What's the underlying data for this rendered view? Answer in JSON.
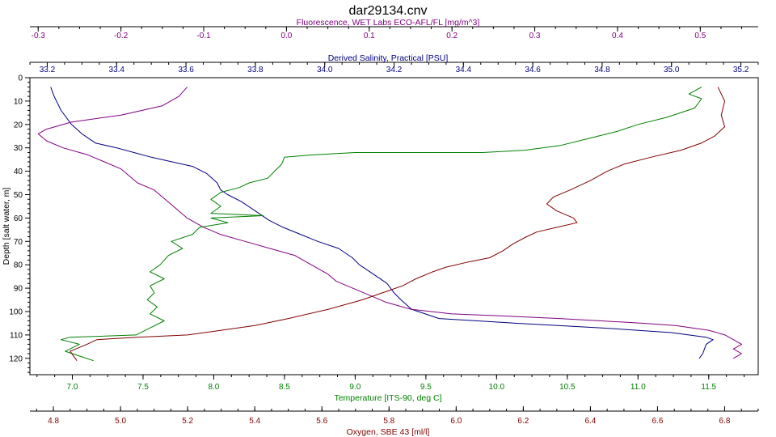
{
  "colors": {
    "background": "#ffffff",
    "axis": "#000000",
    "fluorescence": "#800080",
    "salinity": "#000080",
    "temperature": "#008000",
    "oxygen": "#800000",
    "depth": "#000000"
  },
  "chart_data": {
    "type": "line",
    "title": "dar29134.cnv",
    "grid": false,
    "legend": "none",
    "axes": {
      "fluorescence": {
        "label": "Fluorescence, WET Labs ECO-AFL/FL [mg/m^3]",
        "position": "top",
        "range": [
          -0.31,
          0.57
        ],
        "ticks": [
          -0.3,
          -0.2,
          -0.1,
          0.0,
          0.1,
          0.2,
          0.3,
          0.4,
          0.5
        ],
        "tick_labels": [
          "-0.3",
          "-0.2",
          "-0.1",
          "0.0",
          "0.1",
          "0.2",
          "0.3",
          "0.4",
          "0.5"
        ]
      },
      "salinity": {
        "label": "Derived Salinity, Practical [PSU]",
        "position": "top",
        "range": [
          33.15,
          35.25
        ],
        "ticks": [
          33.2,
          33.4,
          33.6,
          33.8,
          34.0,
          34.2,
          34.4,
          34.6,
          34.8,
          35.0,
          35.2
        ],
        "tick_labels": [
          "33.2",
          "33.4",
          "33.6",
          "33.8",
          "34.0",
          "34.2",
          "34.4",
          "34.6",
          "34.8",
          "35.0",
          "35.2"
        ]
      },
      "depth": {
        "label": "Depth [salt water, m]",
        "position": "left",
        "range": [
          0,
          127
        ],
        "inverted": true,
        "ticks": [
          0,
          10,
          20,
          30,
          40,
          50,
          60,
          70,
          80,
          90,
          100,
          110,
          120
        ],
        "tick_labels": [
          "0",
          "10",
          "20",
          "30",
          "40",
          "50",
          "60",
          "70",
          "80",
          "90",
          "100",
          "110",
          "120"
        ]
      },
      "temperature": {
        "label": "Temperature [ITS-90, deg C]",
        "position": "bottom",
        "range": [
          6.7,
          11.85
        ],
        "ticks": [
          7.0,
          7.5,
          8.0,
          8.5,
          9.0,
          9.5,
          10.0,
          10.5,
          11.0,
          11.5
        ],
        "tick_labels": [
          "7.0",
          "7.5",
          "8.0",
          "8.5",
          "9.0",
          "9.5",
          "10.0",
          "10.5",
          "11.0",
          "11.5"
        ]
      },
      "oxygen": {
        "label": "Oxygen, SBE 43 [ml/l]",
        "position": "bottom",
        "range": [
          4.73,
          6.9
        ],
        "ticks": [
          4.8,
          5.0,
          5.2,
          5.4,
          5.6,
          5.8,
          6.0,
          6.2,
          6.4,
          6.6,
          6.8
        ],
        "tick_labels": [
          "4.8",
          "5.0",
          "5.2",
          "5.4",
          "5.6",
          "5.8",
          "6.0",
          "6.2",
          "6.4",
          "6.6",
          "6.8"
        ]
      }
    },
    "series": [
      {
        "axis": "salinity",
        "points": [
          [
            33.21,
            4
          ],
          [
            33.22,
            8
          ],
          [
            33.24,
            14
          ],
          [
            33.27,
            20
          ],
          [
            33.3,
            24
          ],
          [
            33.34,
            28
          ],
          [
            33.4,
            30
          ],
          [
            33.45,
            32
          ],
          [
            33.5,
            34
          ],
          [
            33.56,
            36
          ],
          [
            33.62,
            38
          ],
          [
            33.66,
            41
          ],
          [
            33.69,
            45
          ],
          [
            33.7,
            48
          ],
          [
            33.72,
            50
          ],
          [
            33.76,
            53
          ],
          [
            33.8,
            57
          ],
          [
            33.84,
            61
          ],
          [
            33.88,
            64
          ],
          [
            33.93,
            67
          ],
          [
            33.98,
            70
          ],
          [
            34.04,
            73
          ],
          [
            34.08,
            77
          ],
          [
            34.1,
            80
          ],
          [
            34.14,
            84
          ],
          [
            34.18,
            88
          ],
          [
            34.2,
            92
          ],
          [
            34.22,
            95
          ],
          [
            34.25,
            99
          ],
          [
            34.33,
            103
          ],
          [
            34.55,
            105
          ],
          [
            34.8,
            107
          ],
          [
            35.0,
            109
          ],
          [
            35.1,
            111
          ],
          [
            35.12,
            112
          ],
          [
            35.1,
            114
          ],
          [
            35.09,
            118
          ],
          [
            35.08,
            120
          ]
        ]
      },
      {
        "axis": "fluorescence",
        "points": [
          [
            -0.12,
            4
          ],
          [
            -0.13,
            8
          ],
          [
            -0.15,
            12
          ],
          [
            -0.2,
            16
          ],
          [
            -0.26,
            19
          ],
          [
            -0.29,
            22
          ],
          [
            -0.3,
            24
          ],
          [
            -0.29,
            27
          ],
          [
            -0.27,
            30
          ],
          [
            -0.24,
            33
          ],
          [
            -0.22,
            36
          ],
          [
            -0.2,
            39
          ],
          [
            -0.19,
            42
          ],
          [
            -0.18,
            45
          ],
          [
            -0.16,
            48
          ],
          [
            -0.15,
            51
          ],
          [
            -0.14,
            54
          ],
          [
            -0.13,
            57
          ],
          [
            -0.12,
            60
          ],
          [
            -0.1,
            64
          ],
          [
            -0.08,
            67
          ],
          [
            -0.05,
            70
          ],
          [
            -0.02,
            73
          ],
          [
            0.01,
            76
          ],
          [
            0.03,
            80
          ],
          [
            0.05,
            84
          ],
          [
            0.06,
            87
          ],
          [
            0.08,
            90
          ],
          [
            0.1,
            93
          ],
          [
            0.12,
            96
          ],
          [
            0.15,
            99
          ],
          [
            0.2,
            101
          ],
          [
            0.27,
            102
          ],
          [
            0.33,
            103
          ],
          [
            0.38,
            104
          ],
          [
            0.43,
            105
          ],
          [
            0.47,
            106
          ],
          [
            0.51,
            108
          ],
          [
            0.53,
            110
          ],
          [
            0.54,
            112
          ],
          [
            0.55,
            114
          ],
          [
            0.54,
            116
          ],
          [
            0.55,
            118
          ],
          [
            0.54,
            120
          ]
        ]
      },
      {
        "axis": "temperature",
        "points": [
          [
            11.45,
            4
          ],
          [
            11.36,
            7
          ],
          [
            11.45,
            9
          ],
          [
            11.4,
            13
          ],
          [
            11.2,
            17
          ],
          [
            11.0,
            20
          ],
          [
            10.85,
            23
          ],
          [
            10.65,
            26
          ],
          [
            10.45,
            29
          ],
          [
            10.2,
            31
          ],
          [
            9.9,
            32
          ],
          [
            9.5,
            32
          ],
          [
            9.0,
            32
          ],
          [
            8.7,
            33
          ],
          [
            8.5,
            34
          ],
          [
            8.48,
            37
          ],
          [
            8.43,
            40
          ],
          [
            8.38,
            43
          ],
          [
            8.25,
            45
          ],
          [
            8.18,
            47
          ],
          [
            8.05,
            49
          ],
          [
            7.98,
            52
          ],
          [
            8.05,
            55
          ],
          [
            7.98,
            58
          ],
          [
            8.35,
            59
          ],
          [
            7.98,
            60
          ],
          [
            8.1,
            62
          ],
          [
            7.9,
            64
          ],
          [
            7.85,
            67
          ],
          [
            7.7,
            70
          ],
          [
            7.78,
            73
          ],
          [
            7.68,
            76
          ],
          [
            7.62,
            80
          ],
          [
            7.55,
            83
          ],
          [
            7.65,
            86
          ],
          [
            7.55,
            89
          ],
          [
            7.58,
            92
          ],
          [
            7.53,
            95
          ],
          [
            7.6,
            98
          ],
          [
            7.55,
            101
          ],
          [
            7.65,
            104
          ],
          [
            7.55,
            107
          ],
          [
            7.45,
            110
          ],
          [
            6.98,
            111
          ],
          [
            6.92,
            112
          ],
          [
            7.05,
            114
          ],
          [
            6.95,
            117
          ],
          [
            7.05,
            119
          ],
          [
            7.15,
            121
          ]
        ]
      },
      {
        "axis": "oxygen",
        "points": [
          [
            6.78,
            4
          ],
          [
            6.8,
            10
          ],
          [
            6.79,
            16
          ],
          [
            6.8,
            21
          ],
          [
            6.77,
            25
          ],
          [
            6.73,
            28
          ],
          [
            6.67,
            31
          ],
          [
            6.58,
            34
          ],
          [
            6.5,
            37
          ],
          [
            6.45,
            40
          ],
          [
            6.4,
            44
          ],
          [
            6.34,
            48
          ],
          [
            6.29,
            51
          ],
          [
            6.27,
            54
          ],
          [
            6.3,
            57
          ],
          [
            6.35,
            60
          ],
          [
            6.36,
            62
          ],
          [
            6.3,
            64
          ],
          [
            6.24,
            66
          ],
          [
            6.21,
            68
          ],
          [
            6.17,
            71
          ],
          [
            6.14,
            74
          ],
          [
            6.1,
            77
          ],
          [
            6.03,
            79
          ],
          [
            5.97,
            81
          ],
          [
            5.93,
            83
          ],
          [
            5.88,
            86
          ],
          [
            5.84,
            89
          ],
          [
            5.78,
            92
          ],
          [
            5.72,
            95
          ],
          [
            5.62,
            99
          ],
          [
            5.5,
            103
          ],
          [
            5.4,
            106
          ],
          [
            5.3,
            108
          ],
          [
            5.2,
            110
          ],
          [
            5.05,
            111
          ],
          [
            4.93,
            112
          ],
          [
            4.9,
            114
          ],
          [
            4.85,
            117
          ],
          [
            4.86,
            119
          ],
          [
            4.87,
            121
          ]
        ]
      }
    ]
  }
}
